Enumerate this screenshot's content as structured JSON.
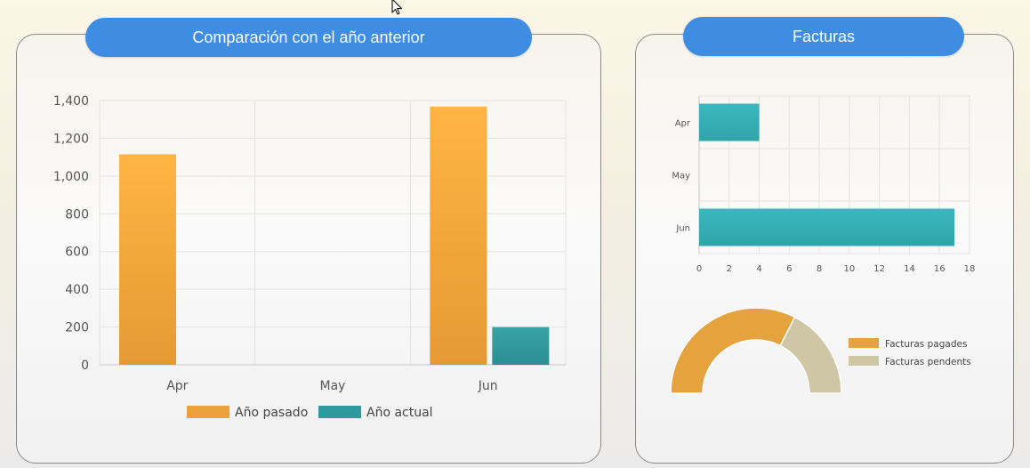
{
  "left_panel": {
    "title": "Comparación con el año anterior"
  },
  "right_panel": {
    "title": "Facturas"
  },
  "chart_data": [
    {
      "type": "bar",
      "title": "Comparación con el año anterior",
      "categories": [
        "Apr",
        "May",
        "Jun"
      ],
      "series": [
        {
          "name": "Año pasado",
          "values": [
            1115,
            0,
            1368
          ],
          "color": "#f0a93a"
        },
        {
          "name": "Año actual",
          "values": [
            0,
            0,
            200
          ],
          "color": "#2f9a9e"
        }
      ],
      "ylim": [
        0,
        1400
      ],
      "yticks": [
        0,
        200,
        400,
        600,
        800,
        1000,
        1200,
        1400
      ],
      "ytick_labels": [
        "0",
        "200",
        "400",
        "600",
        "800",
        "1,000",
        "1,200",
        "1,400"
      ],
      "grid": true,
      "legend": "bottom"
    },
    {
      "type": "bar",
      "orientation": "horizontal",
      "categories": [
        "Apr",
        "May",
        "Jun"
      ],
      "values": [
        4,
        0,
        17
      ],
      "color": "#35b0b6",
      "xlim": [
        0,
        18
      ],
      "xticks": [
        0,
        2,
        4,
        6,
        8,
        10,
        12,
        14,
        16,
        18
      ],
      "grid": true
    },
    {
      "type": "pie",
      "style": "semi-donut",
      "labels": [
        "Facturas pagades",
        "Facturas pendents"
      ],
      "values": [
        65,
        35
      ],
      "colors": [
        "#e6a23c",
        "#cfc6a6"
      ],
      "legend": "right"
    }
  ]
}
